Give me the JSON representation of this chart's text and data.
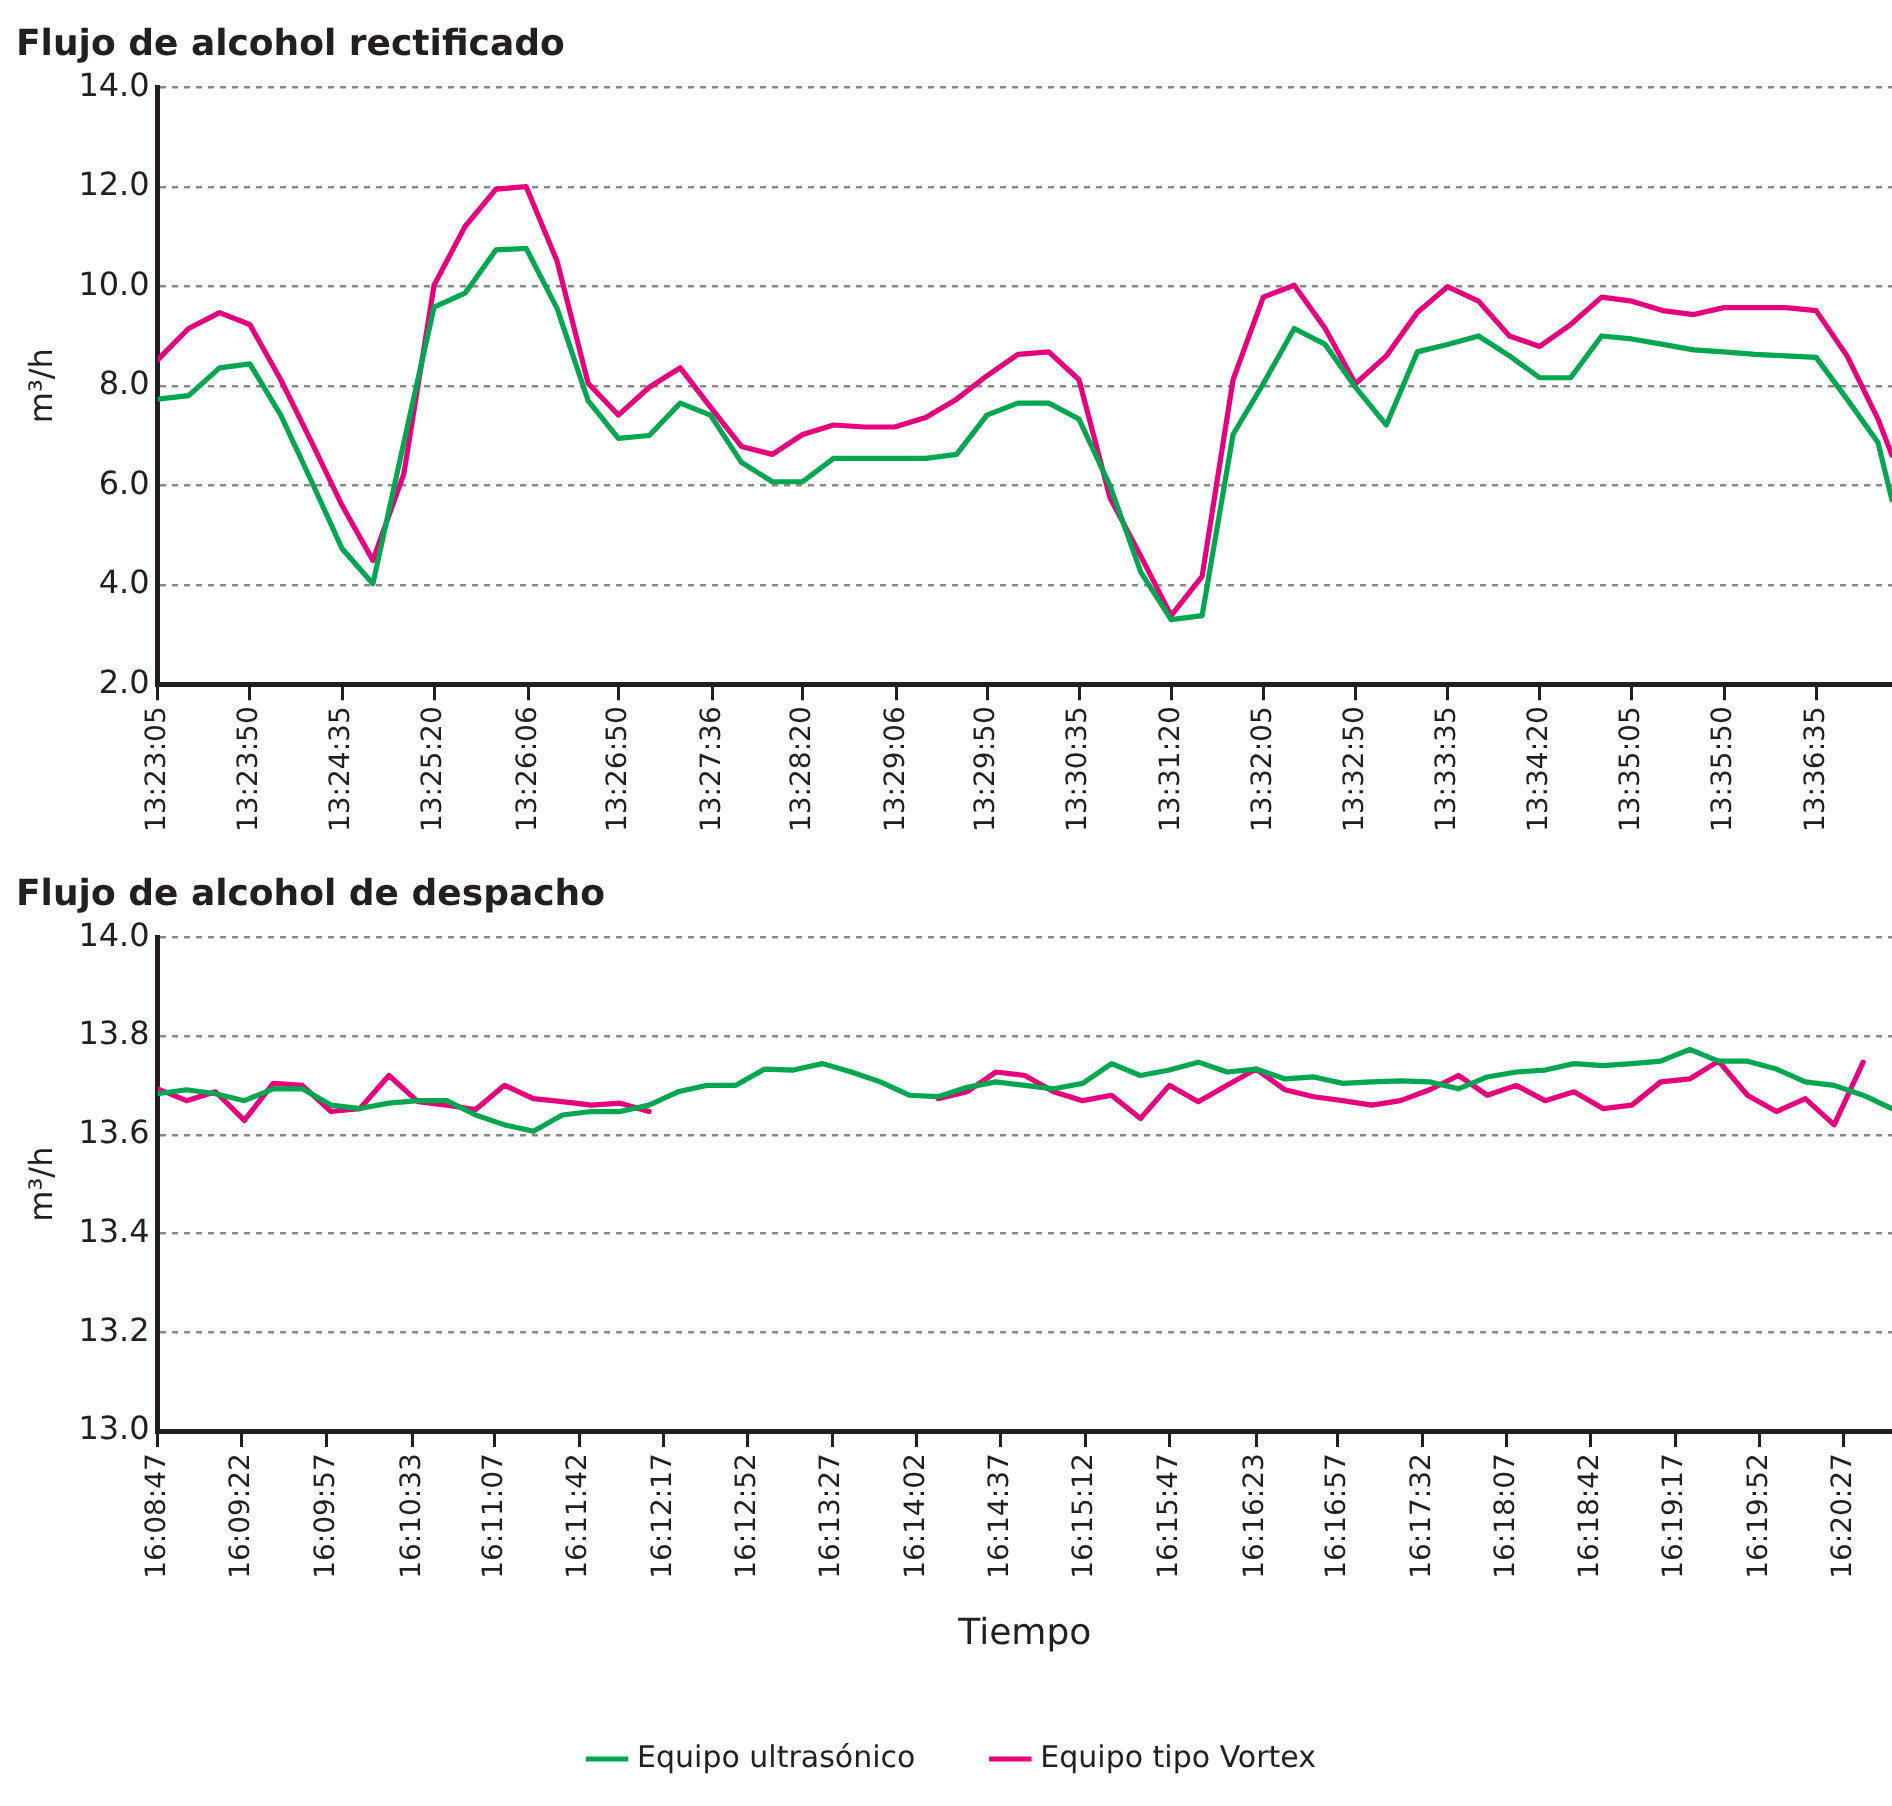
{
  "chart_data": [
    {
      "type": "line",
      "title": "Flujo de alcohol rectificado",
      "ylabel": "m³/h",
      "x": [
        13.3847,
        13.3889,
        13.3931,
        13.3972,
        13.4014,
        13.4056,
        13.4097,
        13.4139,
        13.4181,
        13.4222,
        13.4264,
        13.4306,
        13.4347,
        13.4389,
        13.4431,
        13.4472,
        13.4514,
        13.4556,
        13.4597,
        13.4639,
        13.4681,
        13.4722,
        13.4764,
        13.4806,
        13.4847,
        13.4889,
        13.4931,
        13.4972,
        13.5014,
        13.5056,
        13.5097,
        13.5139,
        13.5181,
        13.5222,
        13.5264,
        13.5306,
        13.5347,
        13.5389,
        13.5431,
        13.5472,
        13.5514,
        13.5556,
        13.5597,
        13.5639,
        13.5681,
        13.5722,
        13.5764,
        13.5806,
        13.5847,
        13.5889,
        13.5931,
        13.5972,
        13.6014,
        13.6056,
        13.6097,
        13.6139,
        13.6181,
        13.62
      ],
      "series": [
        {
          "color": "#00a650",
          "values": [
            7.73,
            7.8,
            8.36,
            8.44,
            7.41,
            6.07,
            4.73,
            4.02,
            6.86,
            9.58,
            9.86,
            10.73,
            10.76,
            9.55,
            7.7,
            6.94,
            7.0,
            7.65,
            7.41,
            6.46,
            6.07,
            6.07,
            6.54,
            6.54,
            6.54,
            6.54,
            6.62,
            7.41,
            7.65,
            7.65,
            7.33,
            5.99,
            4.25,
            3.3,
            3.38,
            7.02,
            8.04,
            9.15,
            8.83,
            7.97,
            7.21,
            8.68,
            8.83,
            9.0,
            8.6,
            8.16,
            8.16,
            9.0,
            8.94,
            8.83,
            8.72,
            8.68,
            8.63,
            8.6,
            8.57,
            7.73,
            6.86,
            5.7
          ]
        },
        {
          "color": "#e6007e",
          "values": [
            8.52,
            9.15,
            9.47,
            9.23,
            8.12,
            6.86,
            5.6,
            4.49,
            6.23,
            10.02,
            11.2,
            11.95,
            12.0,
            10.5,
            8.05,
            7.41,
            7.97,
            8.36,
            7.57,
            6.78,
            6.62,
            7.02,
            7.21,
            7.17,
            7.17,
            7.36,
            7.73,
            8.2,
            8.63,
            8.68,
            8.12,
            5.75,
            4.57,
            3.38,
            4.17,
            8.12,
            9.78,
            10.02,
            9.15,
            8.04,
            8.6,
            9.47,
            9.99,
            9.7,
            9.0,
            8.79,
            9.23,
            9.78,
            9.7,
            9.51,
            9.43,
            9.57,
            9.57,
            9.57,
            9.51,
            8.6,
            7.33,
            6.6
          ]
        }
      ],
      "xlim": [
        13.3847,
        13.62
      ],
      "xticks": [
        {
          "value": 13.38472,
          "label": "13:23:05"
        },
        {
          "value": 13.39722,
          "label": "13:23:50"
        },
        {
          "value": 13.40972,
          "label": "13:24:35"
        },
        {
          "value": 13.42222,
          "label": "13:25:20"
        },
        {
          "value": 13.435,
          "label": "13:26:06"
        },
        {
          "value": 13.44722,
          "label": "13:26:50"
        },
        {
          "value": 13.46,
          "label": "13:27:36"
        },
        {
          "value": 13.47222,
          "label": "13:28:20"
        },
        {
          "value": 13.485,
          "label": "13:29:06"
        },
        {
          "value": 13.49722,
          "label": "13:29:50"
        },
        {
          "value": 13.50972,
          "label": "13:30:35"
        },
        {
          "value": 13.52222,
          "label": "13:31:20"
        },
        {
          "value": 13.53472,
          "label": "13:32:05"
        },
        {
          "value": 13.54722,
          "label": "13:32:50"
        },
        {
          "value": 13.55972,
          "label": "13:33:35"
        },
        {
          "value": 13.57222,
          "label": "13:34:20"
        },
        {
          "value": 13.58472,
          "label": "13:35:05"
        },
        {
          "value": 13.59722,
          "label": "13:35:50"
        },
        {
          "value": 13.60972,
          "label": "13:36:35"
        }
      ],
      "ylim": [
        2,
        14
      ],
      "yticks": [
        {
          "value": 2,
          "label": "2.0"
        },
        {
          "value": 4,
          "label": "4.0"
        },
        {
          "value": 6,
          "label": "6.0"
        },
        {
          "value": 8,
          "label": "8.0"
        },
        {
          "value": 10,
          "label": "10.0"
        },
        {
          "value": 12,
          "label": "12.0"
        },
        {
          "value": 14,
          "label": "14.0"
        }
      ],
      "grid": "y",
      "legend": false
    },
    {
      "type": "line",
      "title": "Flujo de alcohol de despacho",
      "xlabel": "Tiempo",
      "ylabel": "m³/h",
      "x": [
        16.14639,
        16.14972,
        16.15306,
        16.15639,
        16.15972,
        16.16306,
        16.16639,
        16.16972,
        16.17306,
        16.17639,
        16.17972,
        16.18306,
        16.18639,
        16.18972,
        16.19306,
        16.19639,
        16.19972,
        16.20306,
        16.20639,
        16.20972,
        16.21306,
        16.21639,
        16.21972,
        16.22306,
        16.22639,
        16.22972,
        16.23306,
        16.23639,
        16.23972,
        16.24306,
        16.24639,
        16.24972,
        16.25306,
        16.25639,
        16.25972,
        16.26306,
        16.26639,
        16.26972,
        16.27306,
        16.27639,
        16.27972,
        16.28306,
        16.28639,
        16.28972,
        16.29306,
        16.29639,
        16.29972,
        16.30306,
        16.30639,
        16.30972,
        16.31306,
        16.31639,
        16.31972,
        16.32306,
        16.32639,
        16.32972,
        16.33306,
        16.33639,
        16.33972,
        16.34306,
        16.34639
      ],
      "series": [
        {
          "name": "Equipo ultrasónico",
          "color": "#00a650",
          "values": [
            13.683,
            13.691,
            13.683,
            13.669,
            13.693,
            13.693,
            13.66,
            13.653,
            13.664,
            13.669,
            13.669,
            13.64,
            13.62,
            13.607,
            13.64,
            13.647,
            13.647,
            13.66,
            13.687,
            13.7,
            13.7,
            13.733,
            13.731,
            13.744,
            13.727,
            13.707,
            13.68,
            13.677,
            13.696,
            13.707,
            13.7,
            13.693,
            13.704,
            13.744,
            13.72,
            13.731,
            13.747,
            13.727,
            13.733,
            13.713,
            13.717,
            13.704,
            13.707,
            13.709,
            13.707,
            13.693,
            13.717,
            13.727,
            13.731,
            13.744,
            13.74,
            13.744,
            13.749,
            13.773,
            13.749,
            13.749,
            13.733,
            13.707,
            13.7,
            13.68,
            13.653
          ]
        },
        {
          "name": "Equipo tipo Vortex",
          "color": "#e6007e",
          "values": [
            13.693,
            13.669,
            13.687,
            13.629,
            13.704,
            13.7,
            13.647,
            13.653,
            13.72,
            13.667,
            13.66,
            13.651,
            13.7,
            13.673,
            13.667,
            13.66,
            13.664,
            13.647,
            null,
            null,
            null,
            null,
            null,
            null,
            null,
            null,
            null,
            13.673,
            13.687,
            13.727,
            13.72,
            13.687,
            13.669,
            13.68,
            13.633,
            13.7,
            13.667,
            13.7,
            13.733,
            13.691,
            13.677,
            13.669,
            13.66,
            13.669,
            13.691,
            13.72,
            13.68,
            13.7,
            13.669,
            13.687,
            13.653,
            13.66,
            13.707,
            13.713,
            13.749,
            13.68,
            13.647,
            13.673,
            13.62,
            13.747,
            null
          ]
        }
      ],
      "xlim": [
        16.14639,
        16.34639
      ],
      "xticks": [
        {
          "value": 16.14639,
          "label": "16:08:47"
        },
        {
          "value": 16.15611,
          "label": "16:09:22"
        },
        {
          "value": 16.16583,
          "label": "16:09:57"
        },
        {
          "value": 16.17583,
          "label": "16:10:33"
        },
        {
          "value": 16.18528,
          "label": "16:11:07"
        },
        {
          "value": 16.195,
          "label": "16:11:42"
        },
        {
          "value": 16.20472,
          "label": "16:12:17"
        },
        {
          "value": 16.21444,
          "label": "16:12:52"
        },
        {
          "value": 16.22417,
          "label": "16:13:27"
        },
        {
          "value": 16.23389,
          "label": "16:14:02"
        },
        {
          "value": 16.24361,
          "label": "16:14:37"
        },
        {
          "value": 16.25333,
          "label": "16:15:12"
        },
        {
          "value": 16.26306,
          "label": "16:15:47"
        },
        {
          "value": 16.27306,
          "label": "16:16:23"
        },
        {
          "value": 16.2825,
          "label": "16:16:57"
        },
        {
          "value": 16.29222,
          "label": "16:17:32"
        },
        {
          "value": 16.30194,
          "label": "16:18:07"
        },
        {
          "value": 16.31167,
          "label": "16:18:42"
        },
        {
          "value": 16.32139,
          "label": "16:19:17"
        },
        {
          "value": 16.33111,
          "label": "16:19:52"
        },
        {
          "value": 16.34083,
          "label": "16:20:27"
        }
      ],
      "ylim": [
        13,
        14
      ],
      "yticks": [
        {
          "value": 13,
          "label": "13.0"
        },
        {
          "value": 13.2,
          "label": "13.2"
        },
        {
          "value": 13.4,
          "label": "13.4"
        },
        {
          "value": 13.6,
          "label": "13.6"
        },
        {
          "value": 13.8,
          "label": "13.8"
        },
        {
          "value": 14,
          "label": "14.0"
        }
      ],
      "grid": "y",
      "legend": "bottom"
    }
  ]
}
